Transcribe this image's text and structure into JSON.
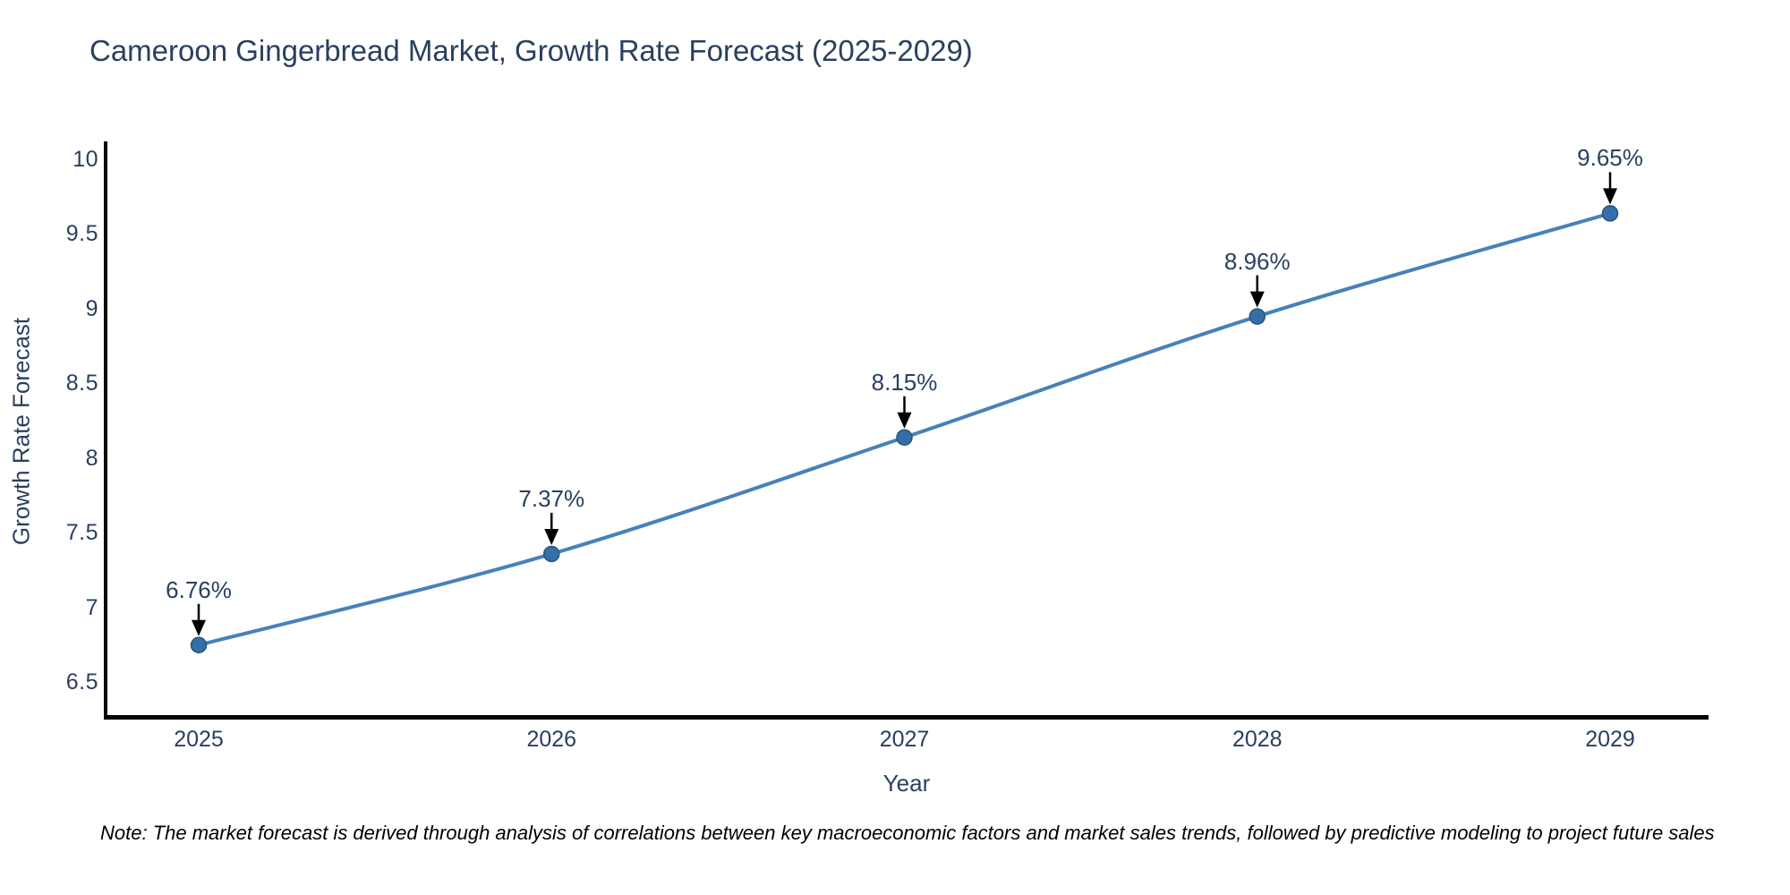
{
  "note": "Note: The market forecast is derived through analysis of correlations between key macroeconomic factors and market sales trends, followed by predictive modeling to project future sales",
  "chart_data": {
    "type": "line",
    "title": "Cameroon Gingerbread Market, Growth Rate Forecast (2025-2029)",
    "xlabel": "Year",
    "ylabel": "Growth Rate Forecast",
    "x": [
      2025,
      2026,
      2027,
      2028,
      2029
    ],
    "xtick_labels": [
      "2025",
      "2026",
      "2027",
      "2028",
      "2029"
    ],
    "series": [
      {
        "name": "Growth Rate Forecast",
        "values": [
          6.76,
          7.37,
          8.15,
          8.96,
          9.65
        ],
        "point_labels": [
          "6.76%",
          "7.37%",
          "8.15%",
          "8.96%",
          "9.65%"
        ]
      }
    ],
    "yticks": [
      10,
      9.5,
      9,
      8.5,
      8,
      7.5,
      7,
      6.5
    ],
    "ytick_labels": [
      "10",
      "9.5",
      "9",
      "8.5",
      "8",
      "7.5",
      "7",
      "6.5"
    ],
    "ylim": [
      6.3,
      10.13
    ],
    "xlim": [
      2024.73,
      2029.28
    ],
    "grid": false,
    "legend": false,
    "colors": {
      "line": "#4781b8",
      "marker_fill": "#356fa8",
      "marker_edge": "#24557f",
      "arrow": "#000000",
      "text": "#2a3f5f",
      "spine": "#000000",
      "background": "#ffffff"
    }
  }
}
